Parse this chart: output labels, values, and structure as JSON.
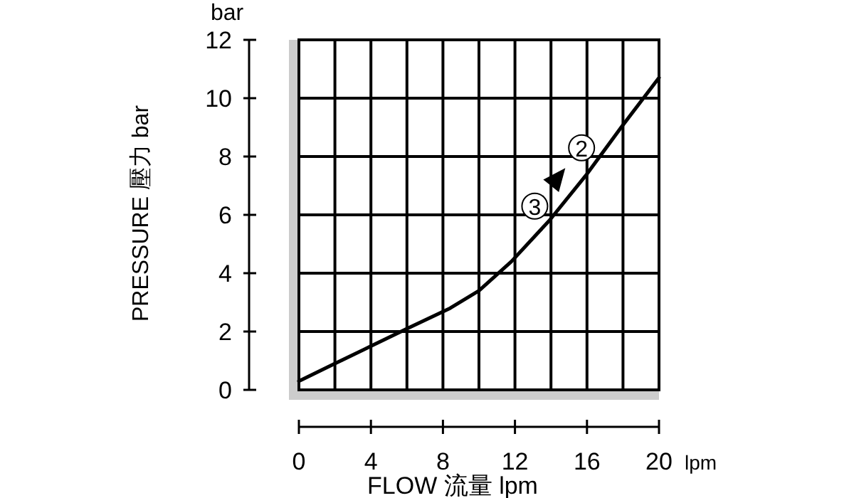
{
  "chart_data": {
    "type": "line",
    "xlabel": "FLOW 流量 lpm",
    "ylabel": "PRESSURE 壓力 bar",
    "x": [
      0,
      2,
      4,
      6,
      8.4,
      10,
      11.8,
      13.9,
      16,
      17.9,
      20
    ],
    "series": [
      {
        "color": "#000000",
        "values": [
          0.3,
          0.9,
          1.5,
          2.1,
          2.8,
          3.4,
          4.4,
          5.8,
          7.4,
          9.0,
          10.7
        ]
      }
    ],
    "xlim": [
      0,
      20
    ],
    "xticks": [
      0,
      4,
      8,
      12,
      16,
      20
    ],
    "ylim": [
      0,
      12
    ],
    "yticks": [
      0,
      2,
      4,
      6,
      8,
      10,
      12
    ],
    "grid": true,
    "marker": "none",
    "line_style": "solid",
    "annotations": [
      "bar",
      "lpm",
      {
        "text": "2",
        "x": 15.7,
        "y": 8.3
      },
      {
        "text": "3",
        "x": 13.1,
        "y": 6.3
      }
    ]
  }
}
